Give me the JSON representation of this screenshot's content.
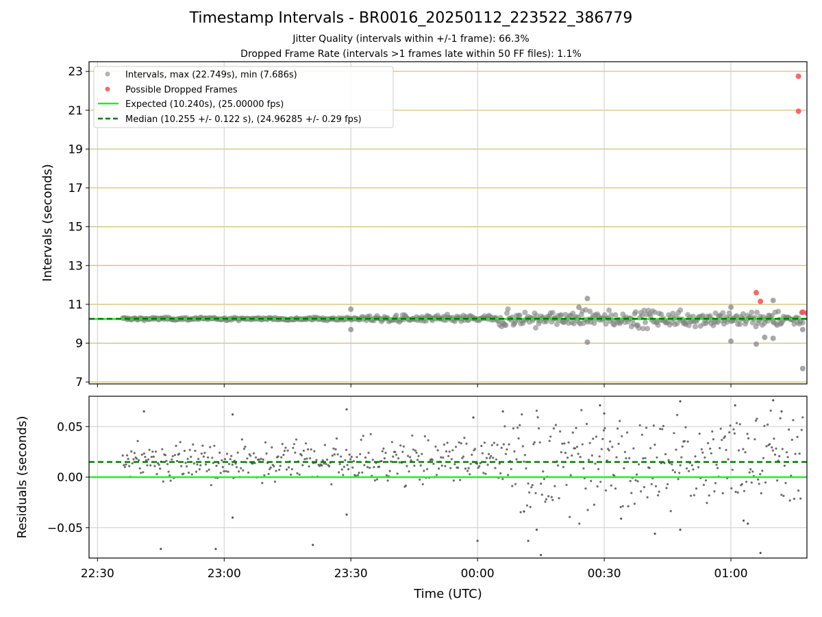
{
  "header": {
    "title": "Timestamp Intervals - BR0016_20250112_223522_386779",
    "subtitle_1": "Jitter Quality (intervals within +/-1 frame): 66.3%",
    "subtitle_2": "Dropped Frame Rate (intervals >1 frames late within 50 FF files): 1.1%"
  },
  "colors": {
    "points": "#808080",
    "dropped": "#ff4040",
    "expected": "#22ee22",
    "median": "#007a00",
    "hgrid_top": "#d8c07a",
    "grid": "#cccccc"
  },
  "chart_data": [
    {
      "type": "scatter",
      "name": "intervals",
      "ylabel": "Intervals (seconds)",
      "ylim": [
        6.9,
        23.5
      ],
      "yticks": [
        7,
        9,
        11,
        13,
        15,
        17,
        19,
        21,
        23
      ],
      "xlim": [
        "22:28",
        "01:18"
      ],
      "xticks": [
        "22:30",
        "23:00",
        "23:30",
        "00:00",
        "00:30",
        "01:00"
      ],
      "grid": true,
      "legend_position": "top-left",
      "legend": [
        "Intervals, max (22.749s), min (7.686s)",
        "Possible Dropped Frames",
        "Expected (10.240s), (25.00000 fps)",
        "Median (10.255 +/- 0.122 s), (24.96285 +/- 0.29 fps)"
      ],
      "expected": 10.24,
      "median": 10.255,
      "dropped_frames": [
        {
          "t": "01:06",
          "y": 11.6
        },
        {
          "t": "01:07",
          "y": 11.15
        },
        {
          "t": "01:16",
          "y": 22.75
        },
        {
          "t": "01:16",
          "y": 20.95
        },
        {
          "t": "01:17",
          "y": 10.6
        },
        {
          "t": "01:18",
          "y": 10.55
        }
      ],
      "outliers": [
        {
          "t": "23:30",
          "y": 10.75
        },
        {
          "t": "23:30",
          "y": 9.7
        },
        {
          "t": "00:26",
          "y": 11.3
        },
        {
          "t": "00:26",
          "y": 9.05
        },
        {
          "t": "00:24",
          "y": 10.85
        },
        {
          "t": "01:00",
          "y": 10.85
        },
        {
          "t": "01:00",
          "y": 9.1
        },
        {
          "t": "01:06",
          "y": 8.95
        },
        {
          "t": "01:08",
          "y": 9.3
        },
        {
          "t": "01:10",
          "y": 9.25
        },
        {
          "t": "01:10",
          "y": 11.2
        },
        {
          "t": "01:17",
          "y": 9.7
        },
        {
          "t": "01:17",
          "y": 7.69
        }
      ]
    },
    {
      "type": "scatter",
      "name": "residuals",
      "xlabel": "Time (UTC)",
      "ylabel": "Residuals (seconds)",
      "ylim": [
        -0.08,
        0.08
      ],
      "ytick_values": [
        0.05,
        0.0,
        -0.05
      ],
      "ytick_labels": [
        "0.05",
        "0.00",
        "−0.05"
      ],
      "expected": 0.0,
      "median": 0.015,
      "grid": true,
      "outliers": [
        {
          "t": "22:41",
          "y": 0.065
        },
        {
          "t": "22:45",
          "y": -0.071
        },
        {
          "t": "22:58",
          "y": -0.071
        },
        {
          "t": "23:02",
          "y": 0.062
        },
        {
          "t": "23:02",
          "y": -0.04
        },
        {
          "t": "23:21",
          "y": -0.067
        },
        {
          "t": "23:29",
          "y": 0.067
        },
        {
          "t": "23:29",
          "y": -0.037
        },
        {
          "t": "23:59",
          "y": 0.059
        },
        {
          "t": "00:00",
          "y": -0.063
        },
        {
          "t": "00:06",
          "y": 0.065
        },
        {
          "t": "00:11",
          "y": -0.034
        },
        {
          "t": "00:12",
          "y": -0.063
        },
        {
          "t": "00:14",
          "y": -0.052
        },
        {
          "t": "00:15",
          "y": -0.077
        },
        {
          "t": "00:29",
          "y": 0.071
        },
        {
          "t": "00:30",
          "y": 0.063
        },
        {
          "t": "00:34",
          "y": -0.041
        },
        {
          "t": "00:42",
          "y": -0.056
        },
        {
          "t": "00:48",
          "y": 0.075
        },
        {
          "t": "00:48",
          "y": -0.052
        },
        {
          "t": "01:01",
          "y": 0.071
        },
        {
          "t": "01:03",
          "y": -0.043
        },
        {
          "t": "01:04",
          "y": -0.046
        },
        {
          "t": "01:07",
          "y": -0.075
        },
        {
          "t": "01:10",
          "y": 0.076
        },
        {
          "t": "01:12",
          "y": 0.065
        }
      ]
    }
  ]
}
